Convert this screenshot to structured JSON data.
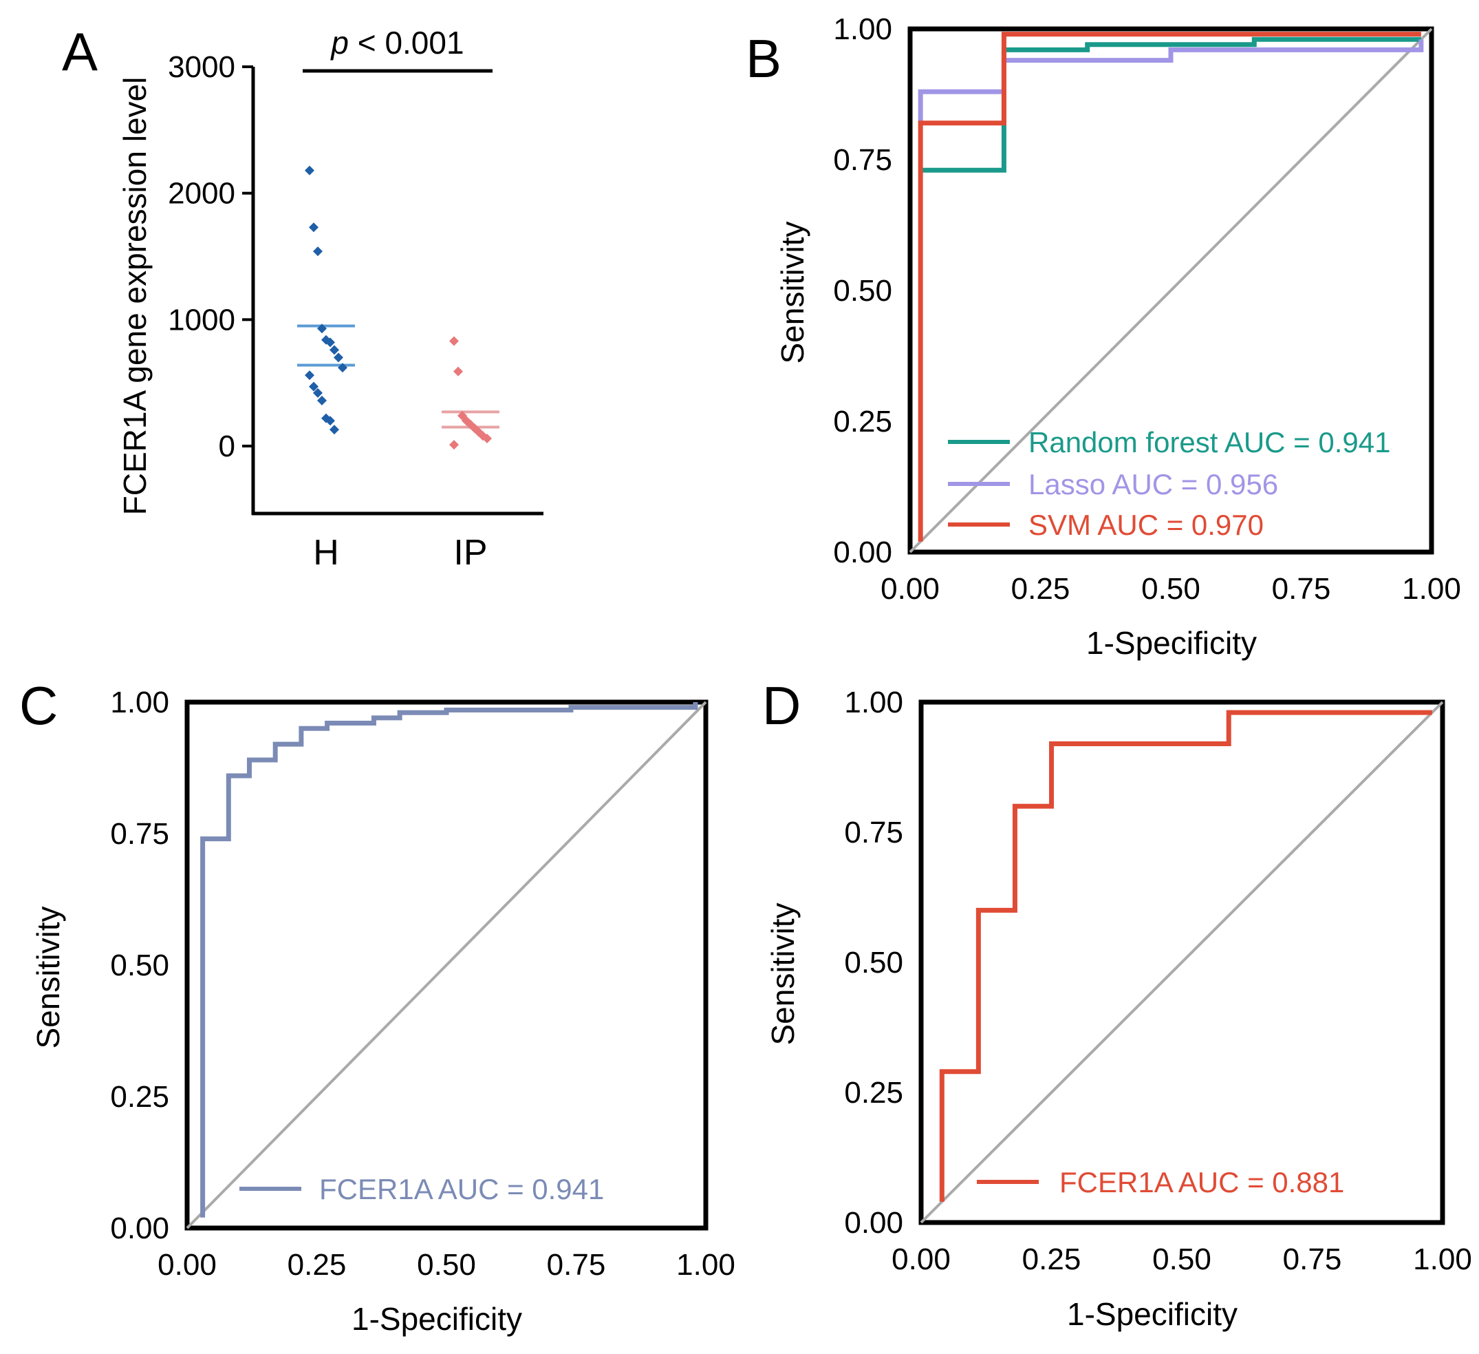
{
  "chart_data": [
    {
      "panel": "A",
      "type": "scatter",
      "ylabel": "FCER1A gene expression level",
      "categories": [
        "H",
        "IP"
      ],
      "ylim": [
        -500,
        3000
      ],
      "yticks": [
        0,
        1000,
        2000,
        3000
      ],
      "yticklabels": [
        "0",
        "1000",
        "2000",
        "3000"
      ],
      "significance": {
        "prefix": "p",
        "text": " < 0.001"
      },
      "groups": [
        {
          "name": "H",
          "color": "#1f5fa8",
          "mean_color": "#5b9bd5",
          "points": [
            2180,
            1730,
            1540,
            930,
            840,
            820,
            760,
            700,
            620,
            560,
            470,
            420,
            360,
            220,
            200,
            130
          ],
          "band": [
            640,
            950
          ]
        },
        {
          "name": "IP",
          "color": "#e8787a",
          "mean_color": "#e8a3a5",
          "points": [
            830,
            590,
            240,
            200,
            170,
            140,
            110,
            80,
            60,
            10
          ],
          "band": [
            150,
            270
          ]
        }
      ]
    },
    {
      "panel": "B",
      "type": "line",
      "xlabel": "1-Specificity",
      "ylabel": "Sensitivity",
      "xlim": [
        0,
        1
      ],
      "ylim": [
        0,
        1
      ],
      "ticks": [
        "0.00",
        "0.25",
        "0.50",
        "0.75",
        "1.00"
      ],
      "legend_position": "bottom-right",
      "series": [
        {
          "name": "Random forest AUC = 0.941",
          "color": "#1a9a8a",
          "x": [
            0.02,
            0.02,
            0.18,
            0.18,
            0.34,
            0.34,
            0.66,
            0.66,
            0.98
          ],
          "y": [
            0.73,
            0.73,
            0.73,
            0.96,
            0.96,
            0.97,
            0.97,
            0.98,
            0.98
          ]
        },
        {
          "name": "Lasso AUC = 0.956",
          "color": "#a195e6",
          "x": [
            0.02,
            0.02,
            0.18,
            0.18,
            0.5,
            0.5,
            0.98,
            0.98
          ],
          "y": [
            0.82,
            0.88,
            0.88,
            0.94,
            0.94,
            0.96,
            0.96,
            0.98
          ]
        },
        {
          "name": "SVM AUC = 0.970",
          "color": "#e04b35",
          "x": [
            0.02,
            0.02,
            0.18,
            0.18,
            0.98
          ],
          "y": [
            0.02,
            0.82,
            0.82,
            0.99,
            0.99
          ]
        }
      ]
    },
    {
      "panel": "C",
      "type": "line",
      "xlabel": "1-Specificity",
      "ylabel": "Sensitivity",
      "xlim": [
        0,
        1
      ],
      "ylim": [
        0,
        1
      ],
      "ticks": [
        "0.00",
        "0.25",
        "0.50",
        "0.75",
        "1.00"
      ],
      "legend_position": "bottom-right",
      "series": [
        {
          "name": "FCER1A  AUC = 0.941",
          "color": "#7b8bb5",
          "x": [
            0.03,
            0.03,
            0.08,
            0.08,
            0.12,
            0.12,
            0.17,
            0.17,
            0.22,
            0.22,
            0.27,
            0.27,
            0.36,
            0.36,
            0.41,
            0.41,
            0.5,
            0.5,
            0.74,
            0.74,
            0.98,
            0.98
          ],
          "y": [
            0.02,
            0.74,
            0.74,
            0.86,
            0.86,
            0.89,
            0.89,
            0.92,
            0.92,
            0.95,
            0.95,
            0.96,
            0.96,
            0.97,
            0.97,
            0.98,
            0.98,
            0.985,
            0.985,
            0.99,
            0.99,
            1.0
          ]
        }
      ]
    },
    {
      "panel": "D",
      "type": "line",
      "xlabel": "1-Specificity",
      "ylabel": "Sensitivity",
      "xlim": [
        0,
        1
      ],
      "ylim": [
        0,
        1
      ],
      "ticks": [
        "0.00",
        "0.25",
        "0.50",
        "0.75",
        "1.00"
      ],
      "legend_position": "bottom-right",
      "series": [
        {
          "name": "FCER1A  AUC = 0.881",
          "color": "#e04b35",
          "x": [
            0.04,
            0.04,
            0.11,
            0.11,
            0.18,
            0.18,
            0.25,
            0.25,
            0.59,
            0.59,
            0.98
          ],
          "y": [
            0.04,
            0.29,
            0.29,
            0.6,
            0.6,
            0.8,
            0.8,
            0.92,
            0.92,
            0.98,
            0.98
          ]
        }
      ]
    }
  ]
}
